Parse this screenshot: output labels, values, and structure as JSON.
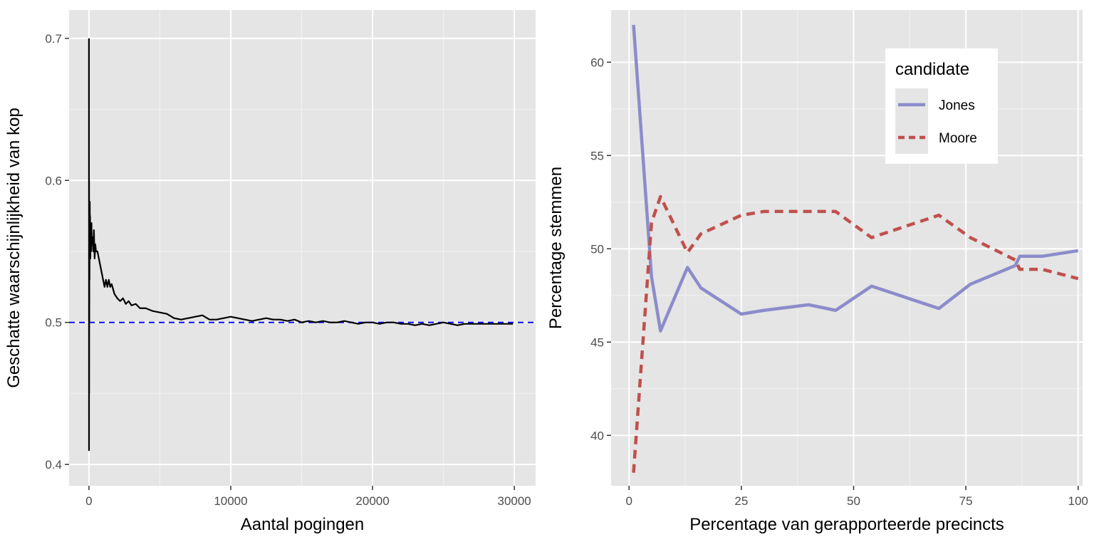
{
  "chart_data": [
    {
      "type": "line",
      "xlabel": "Aantal pogingen",
      "ylabel": "Geschatte waarschijnlijkheid van kop",
      "xlim": [
        -1400,
        31500
      ],
      "ylim": [
        0.385,
        0.72
      ],
      "x_ticks": [
        0,
        10000,
        20000,
        30000
      ],
      "x_tick_labels": [
        "0",
        "10000",
        "20000",
        "30000"
      ],
      "y_ticks": [
        0.4,
        0.5,
        0.6,
        0.7
      ],
      "y_tick_labels": [
        "0.4",
        "0.5",
        "0.6",
        "0.7"
      ],
      "grid": true,
      "reference_line": {
        "y": 0.5,
        "color": "#0000ff",
        "style": "dashed"
      },
      "series": [
        {
          "color": "#000000",
          "x": [
            1,
            5,
            10,
            15,
            20,
            25,
            30,
            40,
            50,
            60,
            70,
            80,
            100,
            120,
            150,
            180,
            200,
            250,
            300,
            350,
            400,
            450,
            500,
            600,
            700,
            800,
            900,
            1000,
            1100,
            1200,
            1300,
            1400,
            1500,
            1600,
            1800,
            2000,
            2200,
            2400,
            2600,
            2800,
            3000,
            3300,
            3600,
            4000,
            4500,
            5000,
            5500,
            6000,
            6500,
            7000,
            7500,
            8000,
            8500,
            9000,
            9500,
            10000,
            10500,
            11000,
            11500,
            12000,
            12500,
            13000,
            13500,
            14000,
            14500,
            15000,
            15500,
            16000,
            16500,
            17000,
            17500,
            18000,
            18500,
            19000,
            19500,
            20000,
            20500,
            21000,
            21500,
            22000,
            22500,
            23000,
            23500,
            24000,
            24500,
            25000,
            25500,
            26000,
            26500,
            27000,
            27500,
            28000,
            28500,
            29000,
            29500,
            29900
          ],
          "y": [
            0.7,
            0.41,
            0.6,
            0.45,
            0.55,
            0.5,
            0.57,
            0.53,
            0.56,
            0.585,
            0.55,
            0.575,
            0.545,
            0.56,
            0.55,
            0.57,
            0.555,
            0.56,
            0.55,
            0.565,
            0.545,
            0.555,
            0.55,
            0.55,
            0.545,
            0.54,
            0.535,
            0.53,
            0.525,
            0.53,
            0.525,
            0.53,
            0.525,
            0.527,
            0.52,
            0.517,
            0.515,
            0.517,
            0.513,
            0.515,
            0.512,
            0.513,
            0.51,
            0.51,
            0.508,
            0.507,
            0.506,
            0.503,
            0.502,
            0.503,
            0.504,
            0.505,
            0.502,
            0.502,
            0.503,
            0.504,
            0.503,
            0.502,
            0.501,
            0.502,
            0.503,
            0.502,
            0.502,
            0.501,
            0.502,
            0.5,
            0.501,
            0.5,
            0.501,
            0.5,
            0.5,
            0.501,
            0.5,
            0.499,
            0.5,
            0.5,
            0.499,
            0.5,
            0.5,
            0.499,
            0.499,
            0.498,
            0.499,
            0.498,
            0.499,
            0.5,
            0.499,
            0.498,
            0.499,
            0.499,
            0.499,
            0.499,
            0.499,
            0.499,
            0.499,
            0.499
          ]
        }
      ]
    },
    {
      "type": "line",
      "xlabel": "Percentage van gerapporteerde precincts",
      "ylabel": "Percentage stemmen",
      "xlim": [
        -4,
        101
      ],
      "ylim": [
        37.3,
        62.8
      ],
      "x_ticks": [
        0,
        25,
        50,
        75,
        100
      ],
      "x_tick_labels": [
        "0",
        "25",
        "50",
        "75",
        "100"
      ],
      "y_ticks": [
        40,
        45,
        50,
        55,
        60
      ],
      "y_tick_labels": [
        "40",
        "45",
        "50",
        "55",
        "60"
      ],
      "grid": true,
      "legend": {
        "title": "candidate",
        "position": "top-right"
      },
      "series": [
        {
          "name": "Jones",
          "color": "#8c8ccb",
          "style": "solid",
          "x": [
            1,
            5,
            7,
            13,
            16,
            25,
            30,
            40,
            46,
            54,
            69,
            76,
            86,
            87,
            92,
            100
          ],
          "y": [
            62,
            48.5,
            45.6,
            49,
            47.9,
            46.5,
            46.7,
            47,
            46.7,
            48,
            46.8,
            48.1,
            49.1,
            49.6,
            49.6,
            49.9
          ]
        },
        {
          "name": "Moore",
          "color": "#c0504d",
          "style": "dashed",
          "x": [
            1,
            5,
            7,
            13,
            16,
            25,
            30,
            40,
            46,
            54,
            69,
            76,
            86,
            87,
            92,
            100
          ],
          "y": [
            38,
            51.4,
            52.8,
            49.8,
            50.8,
            51.8,
            52,
            52,
            52,
            50.6,
            51.8,
            50.6,
            49.4,
            48.9,
            48.9,
            48.4
          ]
        }
      ]
    }
  ]
}
